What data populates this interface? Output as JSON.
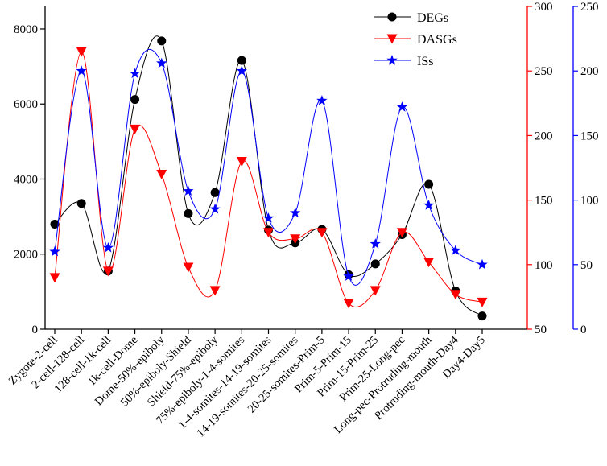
{
  "chart_data": {
    "type": "line",
    "title": "",
    "xlabel": "",
    "categories": [
      "Zygote-2-cell",
      "2-cell-128-cell",
      "128-cell-1k-cell",
      "1k-cell-Dome",
      "Dome-50%-epiboly",
      "50%-epiboly-Shield",
      "Shield-75%-epiboly",
      "75%-epiboly-1-4-somites",
      "1-4-somites-14-19-somites",
      "14-19-somites-20-25-somites",
      "20-25-somites-Prim-5",
      "Prim-5-Prim-15",
      "Prim-15-Prim-25",
      "Prim-25-Long-pec",
      "Long-pec-Protruding-mouth",
      "Protruding-mouth-Day4",
      "Day4-Day5"
    ],
    "axes": {
      "left": {
        "ylim": [
          0,
          8600
        ],
        "ticks": [
          0,
          2000,
          4000,
          6000,
          8000
        ],
        "tick_labels": [
          "0",
          "2000",
          "4000",
          "6000",
          "8000"
        ],
        "color": "#000000"
      },
      "red": {
        "ylim": [
          50,
          300
        ],
        "ticks": [
          50,
          100,
          150,
          200,
          250,
          300
        ],
        "tick_labels": [
          "50",
          "100",
          "150",
          "200",
          "250",
          "300"
        ],
        "color": "#ff0000"
      },
      "blue": {
        "ylim": [
          0,
          250
        ],
        "ticks": [
          0,
          50,
          100,
          150,
          200,
          250
        ],
        "tick_labels": [
          "0",
          "50",
          "100",
          "150",
          "200",
          "250"
        ],
        "color": "#0000ff"
      }
    },
    "series": [
      {
        "name": "DEGs",
        "axis": "left",
        "color": "#000000",
        "marker": "circle",
        "values": [
          2800,
          3350,
          1550,
          6120,
          7680,
          3080,
          3640,
          7160,
          2640,
          2300,
          2660,
          1450,
          1740,
          2520,
          3860,
          1020,
          350
        ]
      },
      {
        "name": "DASGs",
        "axis": "red",
        "color": "#ff0000",
        "marker": "triangle-down",
        "values": [
          90,
          265,
          95,
          205,
          170,
          98,
          80,
          180,
          125,
          120,
          125,
          70,
          80,
          125,
          102,
          77,
          71
        ]
      },
      {
        "name": "ISs",
        "axis": "blue",
        "color": "#0000ff",
        "marker": "star",
        "values": [
          60,
          200,
          63,
          198,
          206,
          107,
          93,
          200,
          86,
          90,
          177,
          41,
          66,
          172,
          96,
          61,
          50
        ]
      }
    ],
    "legend": {
      "position": "top-right"
    }
  }
}
